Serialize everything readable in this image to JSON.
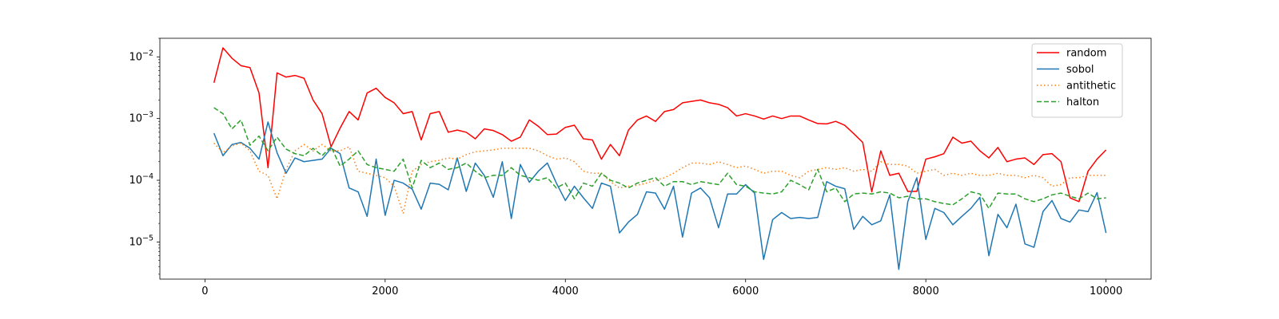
{
  "chart_data": {
    "type": "line",
    "title": "",
    "xlabel": "",
    "ylabel": "",
    "yscale": "log",
    "xlim": [
      -500,
      10500
    ],
    "ylim": [
      2.5e-06,
      0.02
    ],
    "xticks": [
      0,
      2000,
      4000,
      6000,
      8000,
      10000
    ],
    "xtick_labels": [
      "0",
      "2000",
      "4000",
      "6000",
      "8000",
      "10000"
    ],
    "yticks": [
      1e-05,
      0.0001,
      0.001,
      0.01
    ],
    "ytick_labels": [
      {
        "base": "10",
        "exp": "−5"
      },
      {
        "base": "10",
        "exp": "−4"
      },
      {
        "base": "10",
        "exp": "−3"
      },
      {
        "base": "10",
        "exp": "−2"
      }
    ],
    "legend_position": "top-right",
    "x": [
      100,
      200,
      300,
      400,
      500,
      600,
      700,
      800,
      900,
      1000,
      1100,
      1200,
      1300,
      1400,
      1500,
      1600,
      1700,
      1800,
      1900,
      2000,
      2100,
      2200,
      2300,
      2400,
      2500,
      2600,
      2700,
      2800,
      2900,
      3000,
      3100,
      3200,
      3300,
      3400,
      3500,
      3600,
      3700,
      3800,
      3900,
      4000,
      4100,
      4200,
      4300,
      4400,
      4500,
      4600,
      4700,
      4800,
      4900,
      5000,
      5100,
      5200,
      5300,
      5400,
      5500,
      5600,
      5700,
      5800,
      5900,
      6000,
      6100,
      6200,
      6300,
      6400,
      6500,
      6600,
      6700,
      6800,
      6900,
      7000,
      7100,
      7200,
      7300,
      7400,
      7500,
      7600,
      7700,
      7800,
      7900,
      8000,
      8100,
      8200,
      8300,
      8400,
      8500,
      8600,
      8700,
      8800,
      8900,
      9000,
      9100,
      9200,
      9300,
      9400,
      9500,
      9600,
      9700,
      9800,
      9900,
      10000
    ],
    "series": [
      {
        "name": "random",
        "color": "#ff0000",
        "dash": "solid",
        "values": [
          0.0038,
          0.014,
          0.0095,
          0.0072,
          0.0067,
          0.0026,
          0.00016,
          0.0055,
          0.0047,
          0.005,
          0.0045,
          0.002,
          0.0012,
          0.00035,
          0.0007,
          0.0013,
          0.00095,
          0.0026,
          0.0031,
          0.0022,
          0.0018,
          0.0012,
          0.0013,
          0.00045,
          0.0012,
          0.0013,
          0.0006,
          0.00065,
          0.0006,
          0.00047,
          0.00068,
          0.00064,
          0.00055,
          0.00043,
          0.0005,
          0.00095,
          0.00075,
          0.00055,
          0.00056,
          0.00072,
          0.00078,
          0.00047,
          0.00045,
          0.00022,
          0.00038,
          0.00025,
          0.00065,
          0.00095,
          0.0011,
          0.0009,
          0.0013,
          0.0014,
          0.0018,
          0.0019,
          0.002,
          0.0018,
          0.0017,
          0.0015,
          0.0011,
          0.0012,
          0.0011,
          0.00098,
          0.0011,
          0.001,
          0.0011,
          0.0011,
          0.00095,
          0.00083,
          0.00082,
          0.0009,
          0.00078,
          0.00057,
          0.00041,
          6.5e-05,
          0.0003,
          0.00012,
          0.00013,
          6.6e-05,
          6.6e-05,
          0.00022,
          0.00024,
          0.00027,
          0.0005,
          0.0004,
          0.00043,
          0.0003,
          0.00023,
          0.00034,
          0.0002,
          0.00022,
          0.00023,
          0.00018,
          0.00026,
          0.00027,
          0.0002,
          5.2e-05,
          4.5e-05,
          0.00014,
          0.00022,
          0.00031
        ]
      },
      {
        "name": "sobol",
        "color": "#1f77b4",
        "dash": "solid",
        "values": [
          0.00058,
          0.00025,
          0.00038,
          0.00041,
          0.00033,
          0.00022,
          0.00088,
          0.00028,
          0.00013,
          0.00023,
          0.0002,
          0.00021,
          0.00022,
          0.00033,
          0.00027,
          7.5e-05,
          6.5e-05,
          2.6e-05,
          0.00022,
          2.7e-05,
          0.0001,
          9e-05,
          7.2e-05,
          3.4e-05,
          9e-05,
          8.6e-05,
          7e-05,
          0.00023,
          6.6e-05,
          0.00019,
          0.00012,
          5.3e-05,
          0.0002,
          2.4e-05,
          0.00018,
          9.3e-05,
          0.00014,
          0.00019,
          9e-05,
          4.7e-05,
          8e-05,
          5.2e-05,
          3.5e-05,
          9e-05,
          8e-05,
          1.4e-05,
          2.1e-05,
          2.8e-05,
          6.5e-05,
          6.2e-05,
          3.4e-05,
          8e-05,
          1.2e-05,
          6.2e-05,
          7.5e-05,
          5.2e-05,
          1.7e-05,
          6e-05,
          6e-05,
          8.5e-05,
          6.2e-05,
          5.2e-06,
          2.3e-05,
          3e-05,
          2.4e-05,
          2.5e-05,
          2.4e-05,
          2.5e-05,
          9.5e-05,
          8e-05,
          7.3e-05,
          1.6e-05,
          2.6e-05,
          1.9e-05,
          2.2e-05,
          5.8e-05,
          3.6e-06,
          4.5e-05,
          0.00011,
          1.1e-05,
          3.5e-05,
          3e-05,
          1.9e-05,
          2.6e-05,
          3.5e-05,
          5.3e-05,
          6e-06,
          2.8e-05,
          1.7e-05,
          4.1e-05,
          9.3e-06,
          8.2e-06,
          3.1e-05,
          4.7e-05,
          2.4e-05,
          2.1e-05,
          3.3e-05,
          3.1e-05,
          6.3e-05,
          1.4e-05
        ]
      },
      {
        "name": "antithetic",
        "color": "#ff7f0e",
        "dash": "dotted",
        "values": [
          0.0004,
          0.00028,
          0.00036,
          0.0004,
          0.0003,
          0.00014,
          0.00012,
          5e-05,
          0.00015,
          0.0003,
          0.00038,
          0.0003,
          0.00038,
          0.0003,
          0.0003,
          0.00035,
          0.00014,
          0.00013,
          0.00012,
          0.00011,
          8e-05,
          2.9e-05,
          0.00014,
          0.00018,
          0.0002,
          0.00021,
          0.00023,
          0.00022,
          0.00026,
          0.00029,
          0.0003,
          0.00031,
          0.00033,
          0.00033,
          0.00033,
          0.00033,
          0.0003,
          0.00025,
          0.00022,
          0.00023,
          0.0002,
          0.00014,
          0.00013,
          0.00013,
          9.5e-05,
          7.5e-05,
          8e-05,
          8.3e-05,
          9e-05,
          0.0001,
          0.00011,
          0.00013,
          0.00016,
          0.00019,
          0.00019,
          0.00018,
          0.0002,
          0.00018,
          0.00016,
          0.00017,
          0.00015,
          0.00013,
          0.00014,
          0.00014,
          0.00012,
          0.00011,
          0.00014,
          0.00015,
          0.00016,
          0.00015,
          0.00016,
          0.00014,
          0.00015,
          0.00014,
          0.0002,
          0.00018,
          0.00018,
          0.00017,
          0.00013,
          0.00014,
          0.00015,
          0.00012,
          0.00013,
          0.00012,
          0.00013,
          0.00012,
          0.00012,
          0.00013,
          0.00012,
          0.00012,
          0.00011,
          0.00012,
          0.00011,
          8e-05,
          8.5e-05,
          0.00011,
          0.00011,
          0.00012,
          0.00012,
          0.00012
        ]
      },
      {
        "name": "halton",
        "color": "#2ca02c",
        "dash": "dashed",
        "values": [
          0.0015,
          0.0012,
          0.00068,
          0.00095,
          0.00037,
          0.00052,
          0.0003,
          0.0005,
          0.00032,
          0.00027,
          0.00025,
          0.00033,
          0.00025,
          0.00035,
          0.00017,
          0.00022,
          0.0003,
          0.00018,
          0.00016,
          0.00015,
          0.00014,
          0.00022,
          7.5e-05,
          0.00021,
          0.00016,
          0.00019,
          0.00015,
          0.00016,
          0.00019,
          0.00014,
          0.00011,
          0.00012,
          0.00012,
          0.00016,
          0.00012,
          0.00011,
          0.0001,
          0.00011,
          7.5e-05,
          9e-05,
          5e-05,
          9e-05,
          8e-05,
          0.00013,
          0.0001,
          9e-05,
          7.5e-05,
          9e-05,
          0.0001,
          0.00011,
          8e-05,
          9.5e-05,
          9.5e-05,
          8.5e-05,
          9.5e-05,
          9e-05,
          8.5e-05,
          0.00013,
          8.5e-05,
          8e-05,
          6.5e-05,
          6.2e-05,
          6e-05,
          6.5e-05,
          0.0001,
          8.5e-05,
          7e-05,
          0.00015,
          6.5e-05,
          7.5e-05,
          4.5e-05,
          6e-05,
          6.2e-05,
          6e-05,
          6.5e-05,
          6.2e-05,
          5.2e-05,
          5.5e-05,
          5e-05,
          5e-05,
          4.5e-05,
          4.2e-05,
          4e-05,
          5e-05,
          6.5e-05,
          6e-05,
          3.5e-05,
          6.2e-05,
          6e-05,
          6e-05,
          5e-05,
          4.5e-05,
          5e-05,
          5.8e-05,
          6.2e-05,
          5.5e-05,
          5e-05,
          6.2e-05,
          5e-05,
          5.2e-05
        ]
      }
    ]
  }
}
